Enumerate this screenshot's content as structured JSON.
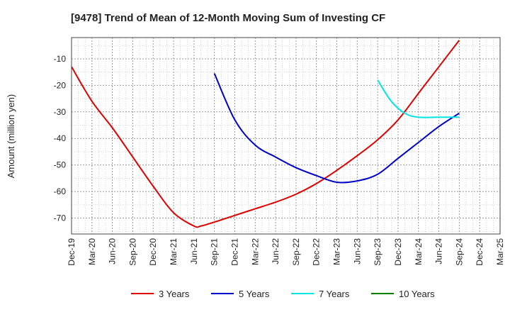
{
  "chart_data": {
    "type": "line",
    "title": "[9478]  Trend of Mean of 12-Month Moving Sum of Investing CF",
    "ylabel": "Amount (million yen)",
    "xlabel": "",
    "ylim": [
      -76,
      -2
    ],
    "yticks": [
      -10,
      -20,
      -30,
      -40,
      -50,
      -60,
      -70
    ],
    "grid": true,
    "legend_position": "bottom",
    "x_tick_labels": [
      "Dec-19",
      "Mar-20",
      "Jun-20",
      "Sep-20",
      "Dec-20",
      "Mar-21",
      "Jun-21",
      "Sep-21",
      "Dec-21",
      "Mar-22",
      "Jun-22",
      "Sep-22",
      "Dec-22",
      "Mar-23",
      "Jun-23",
      "Sep-23",
      "Dec-23",
      "Mar-24",
      "Jun-24",
      "Sep-24",
      "Dec-24",
      "Mar-25"
    ],
    "series": [
      {
        "name": "3 Years",
        "color": "#e00000",
        "x": [
          "2019-12",
          "2020-03",
          "2020-06",
          "2020-09",
          "2020-12",
          "2021-03",
          "2021-06",
          "2021-07",
          "2021-09",
          "2021-12",
          "2022-03",
          "2022-06",
          "2022-09",
          "2022-12",
          "2023-03",
          "2023-06",
          "2023-09",
          "2023-12",
          "2024-03",
          "2024-06",
          "2024-09"
        ],
        "y": [
          -13,
          -26,
          -36,
          -47,
          -58,
          -68,
          -73,
          -73,
          -71.5,
          -69,
          -66.5,
          -64,
          -61,
          -57,
          -52,
          -46.5,
          -40.5,
          -33,
          -23,
          -13,
          -3
        ]
      },
      {
        "name": "5 Years",
        "color": "#0000cc",
        "x": [
          "2021-09",
          "2021-12",
          "2022-03",
          "2022-06",
          "2022-09",
          "2022-12",
          "2023-03",
          "2023-06",
          "2023-09",
          "2023-12",
          "2024-03",
          "2024-06",
          "2024-09"
        ],
        "y": [
          -15.5,
          -33,
          -42.5,
          -47,
          -51,
          -54,
          -56.5,
          -56,
          -53.5,
          -47.5,
          -41.5,
          -35.5,
          -30.5
        ]
      },
      {
        "name": "7 Years",
        "color": "#00e5e5",
        "x": [
          "2023-09",
          "2023-11",
          "2024-01",
          "2024-03",
          "2024-06",
          "2024-09"
        ],
        "y": [
          -18,
          -26,
          -30.5,
          -32,
          -32,
          -32
        ]
      },
      {
        "name": "10 Years",
        "color": "#008000",
        "x": [],
        "y": []
      }
    ]
  }
}
